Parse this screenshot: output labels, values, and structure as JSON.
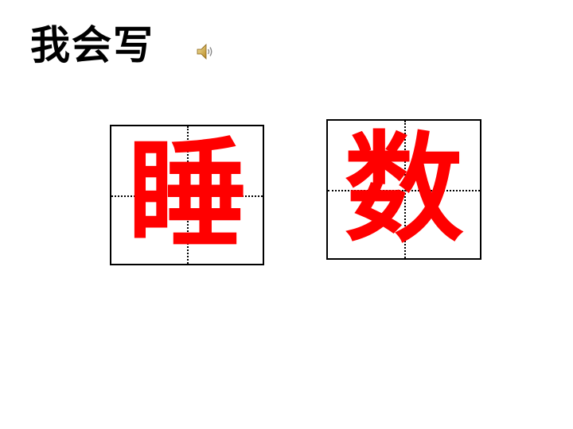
{
  "title": "我会写",
  "speaker_icon": "speaker-sound-icon",
  "characters": [
    "睡",
    "数"
  ],
  "colors": {
    "character": "#ff0000",
    "text": "#000000",
    "background": "#ffffff"
  }
}
